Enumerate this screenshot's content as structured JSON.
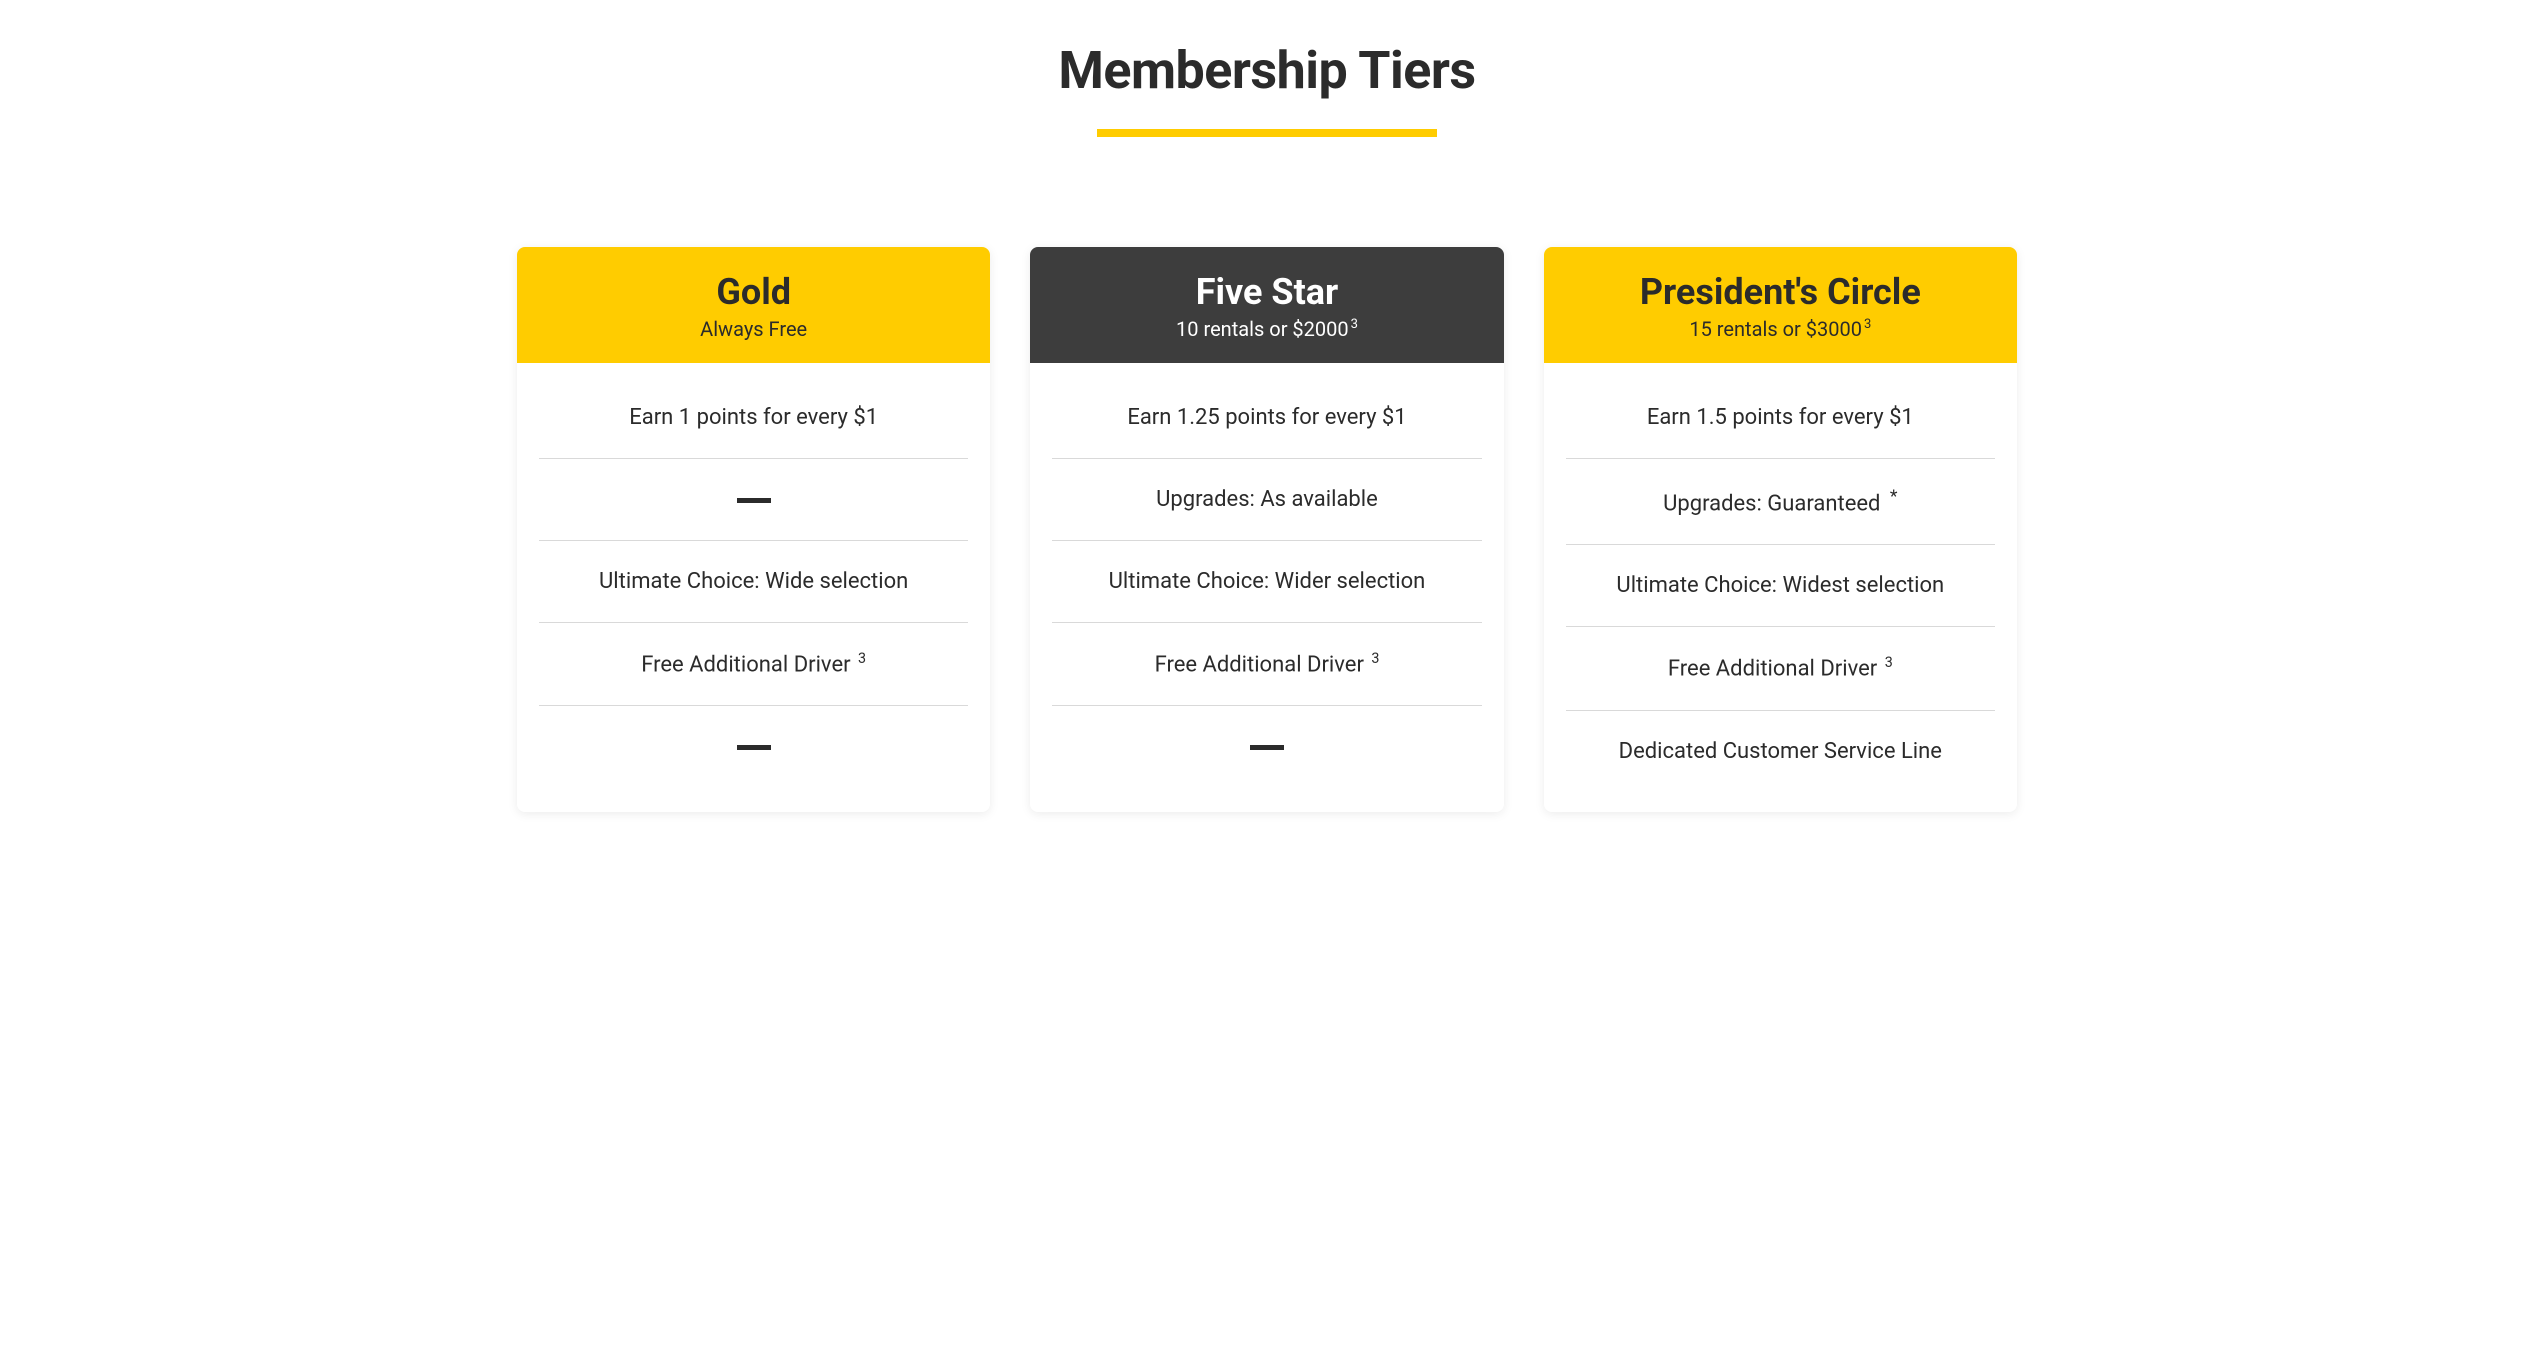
{
  "page": {
    "title": "Membership Tiers",
    "accent_color": "#ffcc00",
    "background_color": "#ffffff",
    "text_color": "#2b2b2b",
    "divider_color": "#d9d9d9"
  },
  "tiers": [
    {
      "name": "Gold",
      "subtitle": "Always Free",
      "subtitle_sup": "",
      "header_bg": "#ffcc00",
      "header_title_color": "#2b2b2b",
      "header_subtitle_color": "#2b2b2b",
      "features": [
        {
          "text": "Earn 1 points for every $1",
          "sup": "",
          "dash": false
        },
        {
          "text": "",
          "sup": "",
          "dash": true
        },
        {
          "text": "Ultimate Choice: Wide selection",
          "sup": "",
          "dash": false
        },
        {
          "text": "Free Additional Driver ",
          "sup": "3",
          "dash": false
        },
        {
          "text": "",
          "sup": "",
          "dash": true
        }
      ]
    },
    {
      "name": "Five Star",
      "subtitle": "10 rentals or $2000",
      "subtitle_sup": "3",
      "header_bg": "#3d3d3d",
      "header_title_color": "#ffffff",
      "header_subtitle_color": "#ffffff",
      "features": [
        {
          "text": "Earn 1.25 points for every $1",
          "sup": "",
          "dash": false
        },
        {
          "text": "Upgrades: As available",
          "sup": "",
          "dash": false
        },
        {
          "text": "Ultimate Choice: Wider selection",
          "sup": "",
          "dash": false
        },
        {
          "text": "Free Additional Driver ",
          "sup": "3",
          "dash": false
        },
        {
          "text": "",
          "sup": "",
          "dash": true
        }
      ]
    },
    {
      "name": "President's Circle",
      "subtitle": "15 rentals or $3000",
      "subtitle_sup": "3",
      "header_bg": "#ffcc00",
      "header_title_color": "#2b2b2b",
      "header_subtitle_color": "#2b2b2b",
      "features": [
        {
          "text": "Earn 1.5 points for every $1",
          "sup": "",
          "dash": false
        },
        {
          "text": "Upgrades: Guaranteed ",
          "sup": "*",
          "dash": false
        },
        {
          "text": "Ultimate Choice: Widest selection",
          "sup": "",
          "dash": false
        },
        {
          "text": "Free Additional Driver ",
          "sup": "3",
          "dash": false
        },
        {
          "text": "Dedicated Customer Service Line",
          "sup": "",
          "dash": false
        }
      ]
    }
  ]
}
